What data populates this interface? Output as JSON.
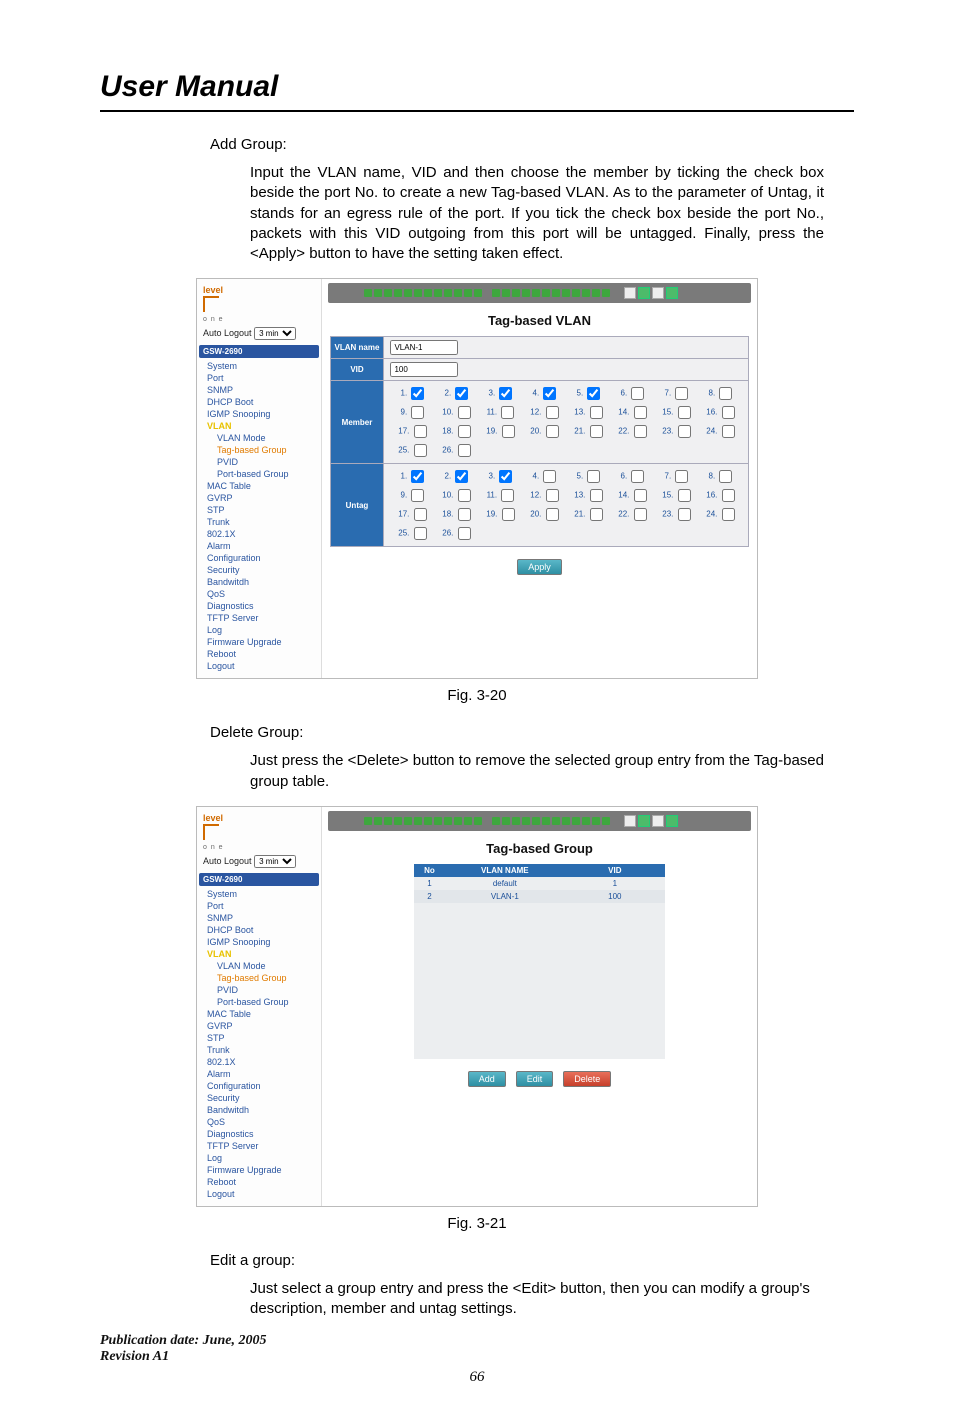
{
  "header": {
    "title": "User Manual"
  },
  "addGroup": {
    "heading": "Add Group:",
    "paragraph": "Input the VLAN name, VID and then choose the member by ticking the check box beside the port No. to create a new Tag-based VLAN. As to the parameter of Untag, it stands for an egress rule of the port. If you tick the check box beside the port No., packets with this VID outgoing from this port will be untagged. Finally, press the <Apply> button to have the setting taken effect."
  },
  "fig1_caption": "Fig. 3-20",
  "deleteGroup": {
    "heading": "Delete Group:",
    "paragraph": "Just press the <Delete> button to remove the selected group entry from the Tag-based group table."
  },
  "fig2_caption": "Fig. 3-21",
  "editGroup": {
    "heading": "Edit a group:",
    "paragraph": "Just select a group entry and press the  <Edit> button, then you can modify a group's description, member and untag settings."
  },
  "pub": {
    "line1": "Publication date: June, 2005",
    "line2": "Revision A1"
  },
  "pagenum": "66",
  "nav": {
    "logo_brand": "level",
    "logo_sub": "o n e",
    "auto_label": "Auto Logout",
    "auto_value": "3 min",
    "device": "GSW-2690",
    "items_top": [
      "System",
      "Port",
      "SNMP",
      "DHCP Boot",
      "IGMP Snooping"
    ],
    "vlan_label": "VLAN",
    "vlan_subs": [
      "VLAN Mode",
      "Tag-based Group",
      "PVID",
      "Port-based Group"
    ],
    "items_mid": [
      "MAC Table",
      "GVRP",
      "STP",
      "Trunk",
      "802.1X",
      "Alarm",
      "Configuration",
      "Security",
      "Bandwitdh",
      "QoS",
      "Diagnostics",
      "TFTP Server",
      "Log",
      "Firmware Upgrade",
      "Reboot",
      "Logout"
    ]
  },
  "shot1": {
    "title": "Tag-based VLAN",
    "rows": {
      "name_label": "VLAN name",
      "name_value": "VLAN-1",
      "vid_label": "VID",
      "vid_value": "100",
      "member_label": "Member",
      "untag_label": "Untag"
    },
    "member_checked": [
      1,
      2,
      3,
      4,
      5
    ],
    "untag_checked": [
      1,
      2,
      3
    ],
    "apply_label": "Apply"
  },
  "shot2": {
    "title": "Tag-based Group",
    "cols": [
      "No",
      "VLAN NAME",
      "VID"
    ],
    "rows": [
      {
        "no": "1",
        "name": "default",
        "vid": "1"
      },
      {
        "no": "2",
        "name": "VLAN-1",
        "vid": "100"
      }
    ],
    "add_label": "Add",
    "edit_label": "Edit",
    "delete_label": "Delete"
  },
  "colors": {
    "header_bg": "#2a6cb0",
    "nav_link": "#2a55a0",
    "active": "#e07b00",
    "btn_blue_from": "#5ab7c8",
    "btn_blue_to": "#2e8fa3",
    "btn_red_from": "#e86f5a",
    "btn_red_to": "#c6402b"
  }
}
